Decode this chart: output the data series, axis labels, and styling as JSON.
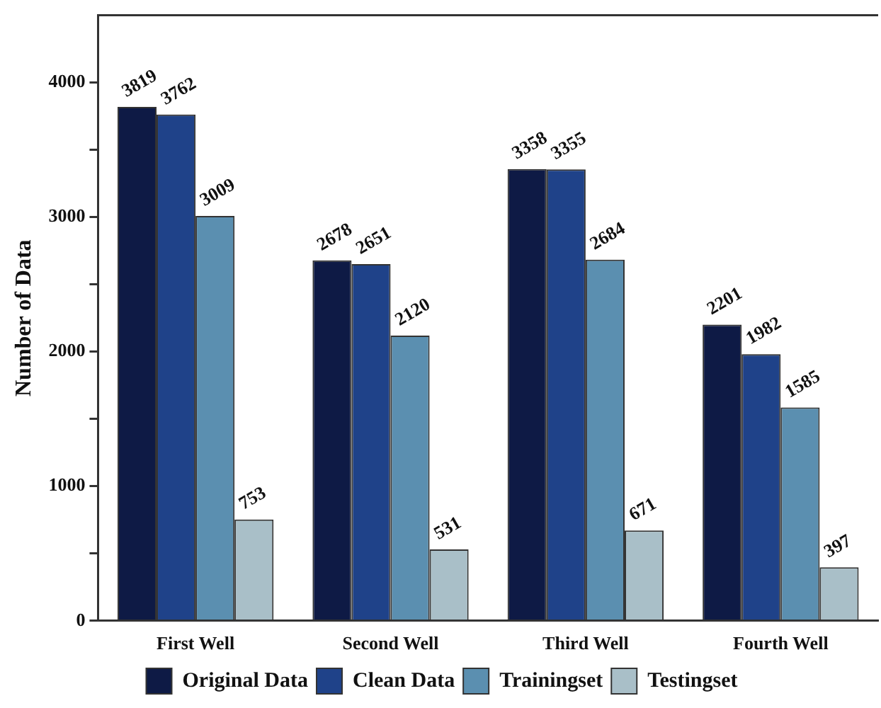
{
  "chart_data": {
    "type": "bar",
    "ylabel": "Number of Data",
    "categories": [
      "First Well",
      "Second Well",
      "Third Well",
      "Fourth Well"
    ],
    "series": [
      {
        "name": "Original Data",
        "color": "#0e1a45",
        "values": [
          3819,
          2678,
          3358,
          2201
        ]
      },
      {
        "name": "Clean Data",
        "color": "#1f4289",
        "values": [
          3762,
          2651,
          3355,
          1982
        ]
      },
      {
        "name": "Trainingset",
        "color": "#5b8fb0",
        "values": [
          3009,
          2120,
          2684,
          1585
        ]
      },
      {
        "name": "Testingset",
        "color": "#a9bfc8",
        "values": [
          753,
          531,
          671,
          397
        ]
      }
    ],
    "ylim": [
      0,
      4500
    ],
    "yticks": [
      0,
      {
        "value": 500,
        "label": null
      },
      1000,
      {
        "value": 1500,
        "label": null
      },
      2000,
      {
        "value": 2500,
        "label": null
      },
      3000,
      {
        "value": 3500,
        "label": null
      },
      4000
    ],
    "data_labels": true,
    "grid": false,
    "legend": "bottom"
  }
}
